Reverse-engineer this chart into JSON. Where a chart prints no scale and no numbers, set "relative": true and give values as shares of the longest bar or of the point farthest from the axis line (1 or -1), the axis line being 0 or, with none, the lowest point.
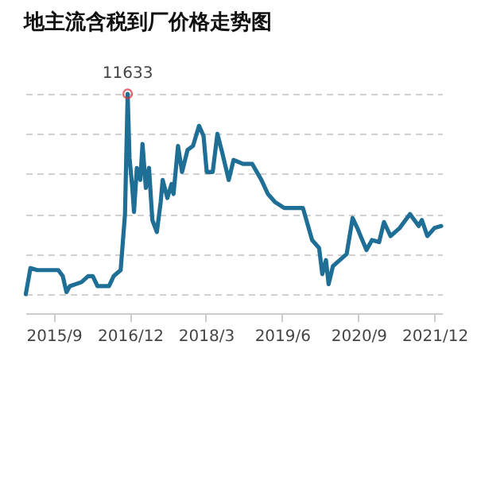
{
  "chart_data": {
    "type": "line",
    "title": "地主流含税到厂价格走势图",
    "relative": true,
    "grid": "y",
    "line_style": "solid",
    "marker": "none",
    "xlim": [
      "2015-03-15",
      "2022-01-15"
    ],
    "xticks": [
      {
        "value": "2015-09-01",
        "label": "2015/9"
      },
      {
        "value": "2016-12-01",
        "label": "2016/12"
      },
      {
        "value": "2018-03-01",
        "label": "2018/3"
      },
      {
        "value": "2019-06-01",
        "label": "2019/6"
      },
      {
        "value": "2020-09-01",
        "label": "2020/9"
      },
      {
        "value": "2021-12-01",
        "label": "2021/12"
      }
    ],
    "annotations": [
      {
        "text": "11633",
        "x": "2016-11-17",
        "y": 1
      }
    ],
    "x": [
      "2015-03-17",
      "2015-04-14",
      "2015-05-25",
      "2015-07-05",
      "2015-09-28",
      "2015-10-25",
      "2015-11-16",
      "2015-12-06",
      "2016-02-14",
      "2016-03-25",
      "2016-04-22",
      "2016-05-20",
      "2016-07-28",
      "2016-08-25",
      "2016-10-06",
      "2016-11-01",
      "2016-11-17",
      "2016-11-28",
      "2016-12-14",
      "2016-12-25",
      "2017-01-11",
      "2017-02-01",
      "2017-02-14",
      "2017-03-06",
      "2017-03-25",
      "2017-04-14",
      "2017-05-11",
      "2017-06-03",
      "2017-06-15",
      "2017-07-13",
      "2017-08-07",
      "2017-08-19",
      "2017-09-15",
      "2017-10-09",
      "2017-11-11",
      "2017-12-14",
      "2018-01-19",
      "2018-02-15",
      "2018-03-06",
      "2018-04-11",
      "2018-05-09",
      "2018-06-06",
      "2018-07-16",
      "2018-08-14",
      "2018-10-09",
      "2018-12-04",
      "2019-01-28",
      "2019-03-08",
      "2019-04-19",
      "2019-06-14",
      "2019-10-04",
      "2019-11-28",
      "2020-01-09",
      "2020-01-28",
      "2020-02-19",
      "2020-03-06",
      "2020-04-01",
      "2020-05-12",
      "2020-06-22",
      "2020-07-06",
      "2020-07-28",
      "2020-08-25",
      "2020-09-14",
      "2020-10-19",
      "2020-11-21",
      "2021-01-03",
      "2021-02-01",
      "2021-03-12",
      "2021-05-06",
      "2021-07-07",
      "2021-08-28",
      "2021-09-16",
      "2021-10-19",
      "2021-12-01",
      "2022-01-10"
    ],
    "series": [
      {
        "color": "#1f6e96",
        "values": [
          0.0,
          0.13,
          0.12,
          0.12,
          0.12,
          0.09,
          0.01,
          0.04,
          0.06,
          0.09,
          0.09,
          0.04,
          0.04,
          0.09,
          0.12,
          0.4,
          1,
          0.68,
          0.54,
          0.41,
          0.63,
          0.57,
          0.75,
          0.53,
          0.63,
          0.37,
          0.31,
          0.46,
          0.57,
          0.48,
          0.55,
          0.5,
          0.74,
          0.61,
          0.72,
          0.74,
          0.84,
          0.79,
          0.61,
          0.61,
          0.8,
          0.71,
          0.57,
          0.67,
          0.65,
          0.65,
          0.57,
          0.5,
          0.46,
          0.43,
          0.43,
          0.27,
          0.23,
          0.1,
          0.17,
          0.05,
          0.14,
          0.17,
          0.2,
          0.27,
          0.38,
          0.33,
          0.29,
          0.22,
          0.27,
          0.26,
          0.36,
          0.29,
          0.33,
          0.4,
          0.34,
          0.37,
          0.29,
          0.33,
          0.34
        ]
      }
    ]
  }
}
